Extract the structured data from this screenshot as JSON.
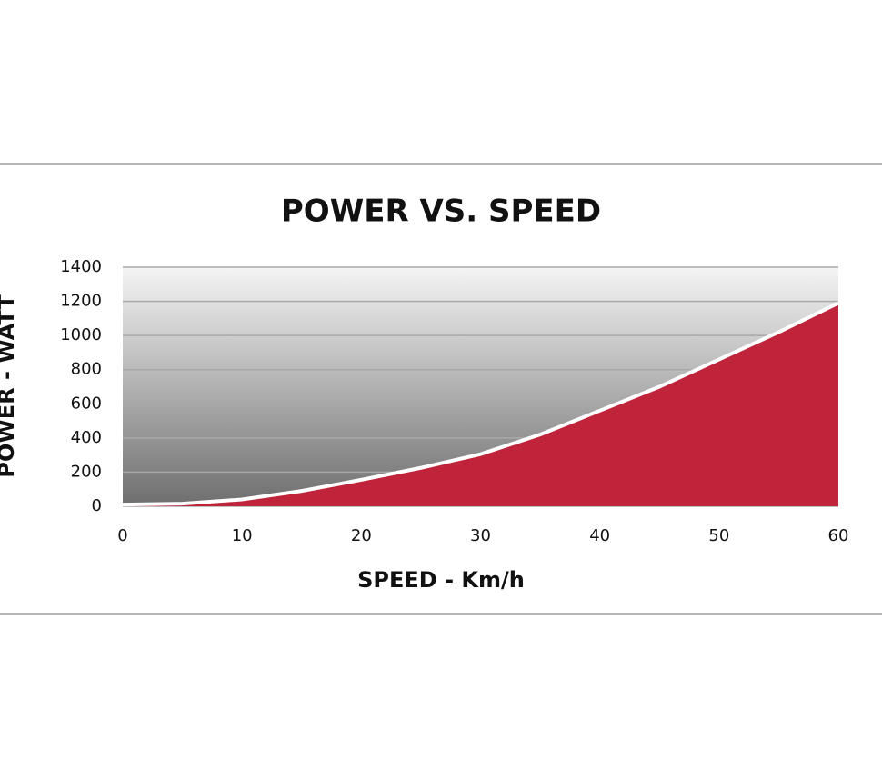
{
  "chart_data": {
    "type": "area",
    "title": "POWER VS. SPEED",
    "x_label": "SPEED - Km/h",
    "y_label": "POWER - WATT",
    "x": [
      0,
      5,
      10,
      15,
      20,
      25,
      30,
      35,
      40,
      45,
      50,
      55,
      60
    ],
    "series": [
      {
        "name": "Power",
        "color": "#c0243a",
        "values": [
          10,
          15,
          40,
          90,
          155,
          225,
          305,
          420,
          560,
          700,
          860,
          1020,
          1190
        ]
      }
    ],
    "xlim": [
      0,
      60
    ],
    "xticks": [
      0,
      10,
      20,
      30,
      40,
      50,
      60
    ],
    "ylim": [
      0,
      1400
    ],
    "yticks": [
      0,
      200,
      400,
      600,
      800,
      1000,
      1200,
      1400
    ],
    "grid": true
  }
}
